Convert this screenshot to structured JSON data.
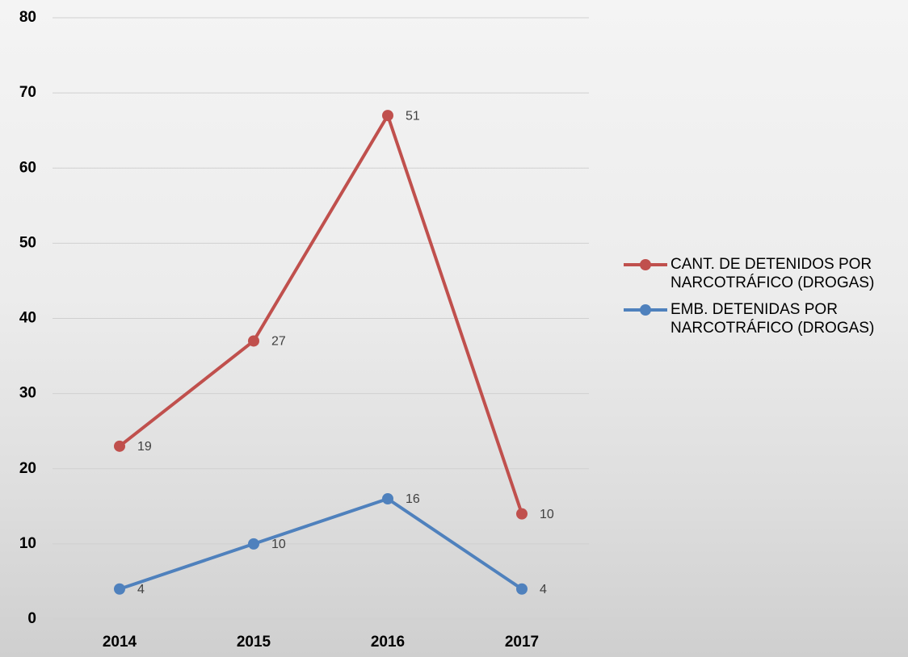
{
  "chart_data": {
    "type": "line",
    "stacked": true,
    "categories": [
      "2014",
      "2015",
      "2016",
      "2017"
    ],
    "series": [
      {
        "name": "CANT. DE DETENIDOS POR NARCOTRÁFICO (DROGAS)",
        "color": "#c0504d",
        "values": [
          19,
          27,
          51,
          10
        ]
      },
      {
        "name": "EMB. DETENIDAS POR NARCOTRÁFICO (DROGAS)",
        "color": "#4f81bd",
        "values": [
          4,
          10,
          16,
          4
        ]
      }
    ],
    "ylim": [
      0,
      80
    ],
    "yticks": [
      0,
      10,
      20,
      30,
      40,
      50,
      60,
      70,
      80
    ],
    "grid": true,
    "legend": "right"
  }
}
